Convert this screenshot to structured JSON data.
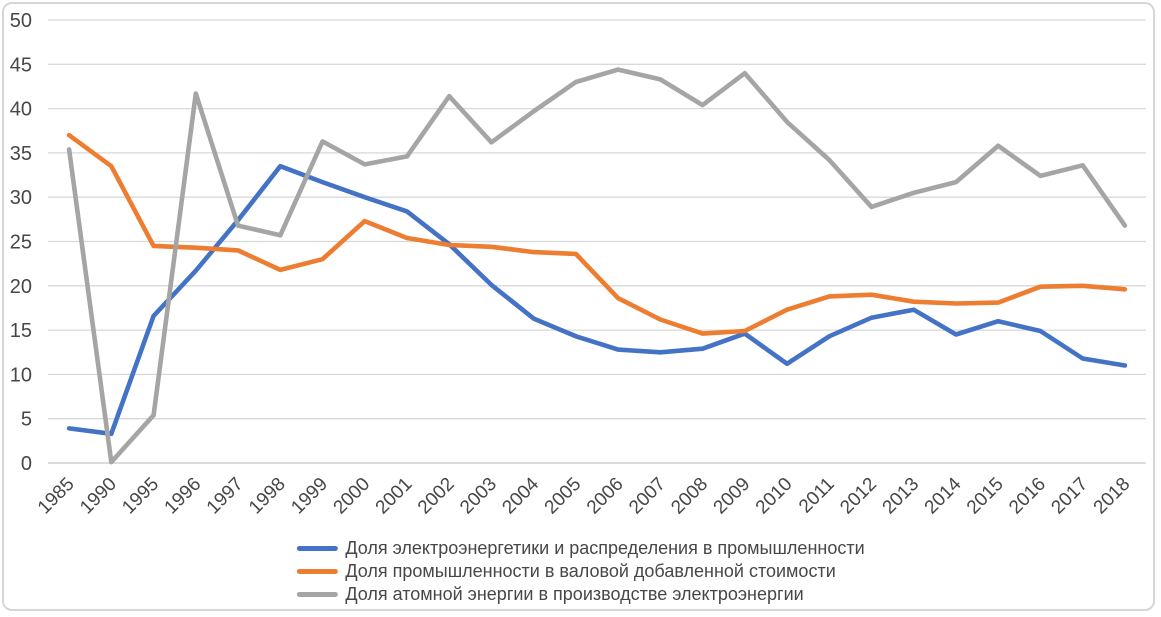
{
  "chart_data": {
    "type": "line",
    "categories": [
      "1985",
      "1990",
      "1995",
      "1996",
      "1997",
      "1998",
      "1999",
      "2000",
      "2001",
      "2002",
      "2003",
      "2004",
      "2005",
      "2006",
      "2007",
      "2008",
      "2009",
      "2010",
      "2011",
      "2012",
      "2013",
      "2014",
      "2015",
      "2016",
      "2017",
      "2018"
    ],
    "y_ticks": [
      0,
      5,
      10,
      15,
      20,
      25,
      30,
      35,
      40,
      45,
      50
    ],
    "ylim": [
      0,
      50
    ],
    "grid": true,
    "legend_position": "bottom-center",
    "series": [
      {
        "name": "Доля электроэнергетики и распределения в промышленности",
        "color": "#4472C4",
        "values": [
          3.9,
          3.3,
          16.6,
          21.7,
          27.4,
          33.5,
          31.7,
          30.0,
          28.4,
          24.7,
          20.1,
          16.3,
          14.3,
          12.8,
          12.5,
          12.9,
          14.6,
          11.2,
          14.3,
          16.4,
          17.3,
          14.5,
          16.0,
          14.9,
          11.8,
          11.0
        ]
      },
      {
        "name": "Доля промышленности в валовой добавленной стоимости",
        "color": "#ED7D31",
        "values": [
          37.0,
          33.5,
          24.5,
          24.3,
          24.0,
          21.8,
          23.0,
          27.3,
          25.4,
          24.6,
          24.4,
          23.8,
          23.6,
          18.6,
          16.2,
          14.6,
          14.9,
          17.3,
          18.8,
          19.0,
          18.2,
          18.0,
          18.1,
          19.9,
          20.0,
          19.6
        ]
      },
      {
        "name": "Доля атомной энергии в производстве электроэнергии",
        "color": "#A5A5A5",
        "values": [
          35.4,
          0.1,
          5.4,
          41.7,
          26.8,
          25.7,
          36.3,
          33.7,
          34.6,
          41.4,
          36.2,
          39.7,
          43.0,
          44.4,
          43.3,
          40.4,
          44.0,
          38.5,
          34.2,
          28.9,
          30.5,
          31.7,
          35.8,
          32.4,
          33.6,
          26.8
        ]
      }
    ],
    "colors": {
      "gridline": "#D9D9D9",
      "zero_line": "#C6C6C6",
      "tick_label": "#474747",
      "legend_text": "#474747",
      "frame_border": "#D6D6D6",
      "background": "#FFFFFF"
    }
  }
}
